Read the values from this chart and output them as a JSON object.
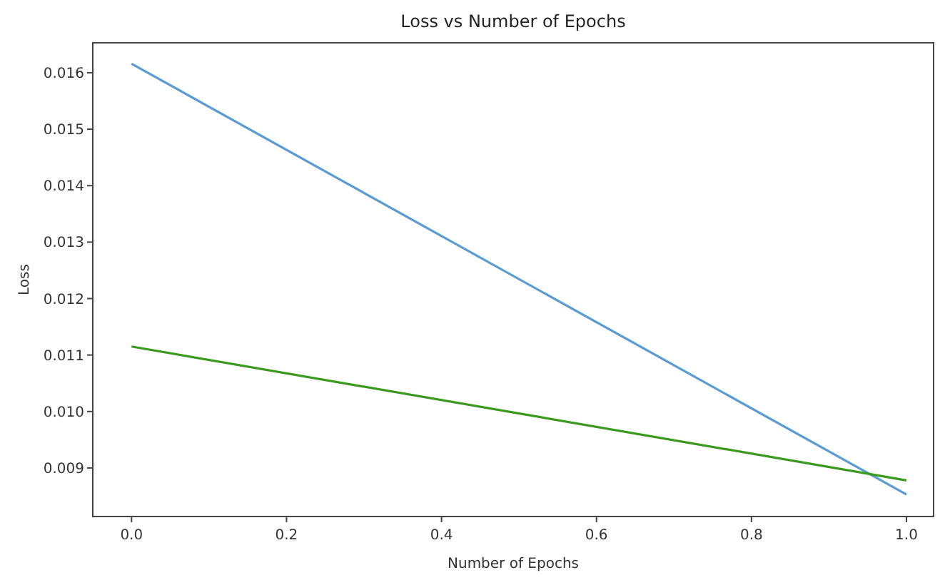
{
  "chart_data": {
    "type": "line",
    "title": "Loss vs Number of Epochs",
    "xlabel": "Number of Epochs",
    "ylabel": "Loss",
    "x": [
      0,
      1
    ],
    "series": [
      {
        "color": "#5b9bd5",
        "values": [
          0.01616,
          0.00853
        ]
      },
      {
        "color": "#3a9a1e",
        "values": [
          0.01115,
          0.00878
        ]
      }
    ],
    "xlim": [
      -0.05,
      1.035
    ],
    "xticks": [
      {
        "value": 0,
        "label": "0.0"
      },
      {
        "value": 0.2,
        "label": "0.2"
      },
      {
        "value": 0.4,
        "label": "0.4"
      },
      {
        "value": 0.6,
        "label": "0.6"
      },
      {
        "value": 0.8,
        "label": "0.8"
      },
      {
        "value": 1,
        "label": "1.0"
      }
    ],
    "ylim": [
      0.00814,
      0.01653
    ],
    "yticks": [
      {
        "value": 0.009,
        "label": "0.009"
      },
      {
        "value": 0.01,
        "label": "0.010"
      },
      {
        "value": 0.011,
        "label": "0.011"
      },
      {
        "value": 0.012,
        "label": "0.012"
      },
      {
        "value": 0.013,
        "label": "0.013"
      },
      {
        "value": 0.014,
        "label": "0.014"
      },
      {
        "value": 0.015,
        "label": "0.015"
      },
      {
        "value": 0.016,
        "label": "0.016"
      }
    ],
    "grid": false
  }
}
